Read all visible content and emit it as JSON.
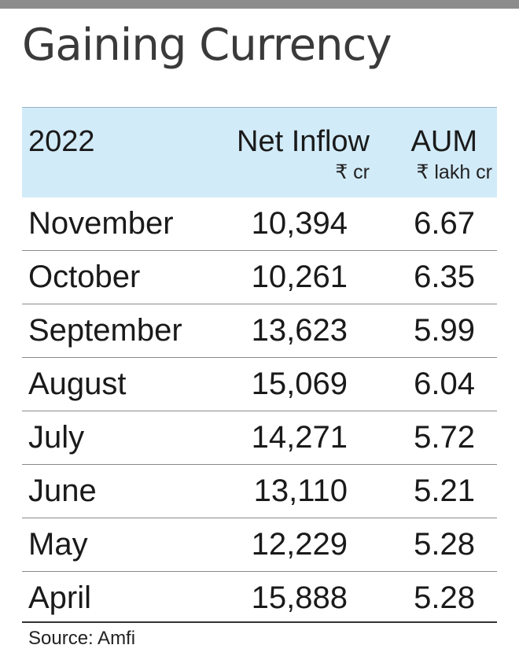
{
  "chart_data": {
    "type": "table",
    "title": "Gaining Currency",
    "columns": [
      {
        "label": "2022",
        "unit": ""
      },
      {
        "label": "Net Inflow",
        "unit": "₹ cr"
      },
      {
        "label": "AUM",
        "unit": "₹ lakh cr"
      }
    ],
    "rows": [
      {
        "month": "November",
        "net_inflow": "10,394",
        "aum": "6.67"
      },
      {
        "month": "October",
        "net_inflow": "10,261",
        "aum": "6.35"
      },
      {
        "month": "September",
        "net_inflow": "13,623",
        "aum": "5.99"
      },
      {
        "month": "August",
        "net_inflow": "15,069",
        "aum": "6.04"
      },
      {
        "month": "July",
        "net_inflow": "14,271",
        "aum": "5.72"
      },
      {
        "month": "June",
        "net_inflow": "13,110",
        "aum": "5.21"
      },
      {
        "month": "May",
        "net_inflow": "12,229",
        "aum": "5.28"
      },
      {
        "month": "April",
        "net_inflow": "15,888",
        "aum": "5.28"
      }
    ],
    "source": "Source: Amfi"
  },
  "colors": {
    "header_bg": "#d2ebf8",
    "top_bar": "#8c8c8c",
    "title": "#3a3a3a",
    "text": "#1a1a1a"
  }
}
